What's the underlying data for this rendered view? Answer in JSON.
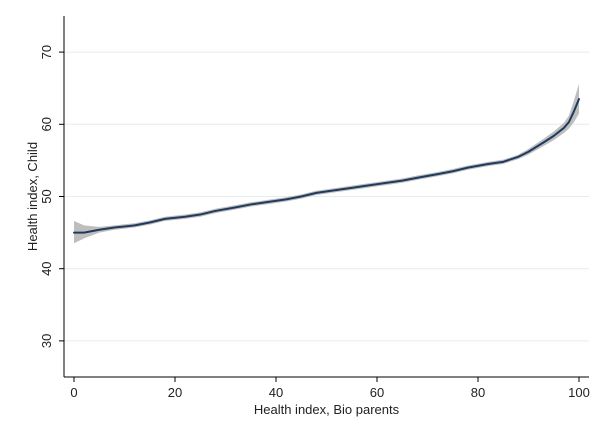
{
  "chart_data": {
    "type": "line",
    "title": "",
    "xlabel": "Health index, Bio parents",
    "ylabel": "Health index, Child",
    "xlim": [
      0,
      100
    ],
    "ylim": [
      25,
      75
    ],
    "xticks": [
      0,
      20,
      40,
      60,
      80,
      100
    ],
    "yticks": [
      30,
      40,
      50,
      60,
      70
    ],
    "grid": {
      "horizontal": true,
      "vertical": false
    },
    "legend": "none",
    "series": [
      {
        "x": [
          0,
          2,
          5,
          8,
          12,
          15,
          18,
          22,
          25,
          28,
          32,
          35,
          38,
          42,
          45,
          48,
          52,
          55,
          58,
          62,
          65,
          68,
          72,
          75,
          78,
          82,
          85,
          88,
          90,
          93,
          95,
          97,
          98,
          99,
          100
        ],
        "y": [
          45.0,
          45.0,
          45.4,
          45.7,
          46.0,
          46.4,
          46.9,
          47.2,
          47.5,
          48.0,
          48.5,
          48.9,
          49.2,
          49.6,
          50.0,
          50.5,
          50.9,
          51.2,
          51.5,
          51.9,
          52.2,
          52.6,
          53.1,
          53.5,
          54.0,
          54.5,
          54.8,
          55.5,
          56.2,
          57.5,
          58.4,
          59.5,
          60.3,
          61.8,
          63.5
        ],
        "ci_lower": [
          43.5,
          44.2,
          45.0,
          45.4,
          45.7,
          46.1,
          46.6,
          46.9,
          47.2,
          47.7,
          48.2,
          48.6,
          48.9,
          49.3,
          49.7,
          50.2,
          50.6,
          50.9,
          51.2,
          51.6,
          51.9,
          52.3,
          52.8,
          53.2,
          53.7,
          54.2,
          54.5,
          55.2,
          55.8,
          57.0,
          57.8,
          58.8,
          59.4,
          60.3,
          61.5
        ],
        "ci_upper": [
          46.6,
          46.0,
          45.8,
          46.0,
          46.3,
          46.7,
          47.2,
          47.5,
          47.8,
          48.3,
          48.8,
          49.2,
          49.5,
          49.9,
          50.3,
          50.8,
          51.2,
          51.5,
          51.8,
          52.2,
          52.5,
          52.9,
          53.4,
          53.8,
          54.3,
          54.8,
          55.1,
          55.8,
          56.6,
          58.0,
          59.0,
          60.2,
          61.2,
          63.3,
          65.6
        ],
        "line_color": "#1e3a5f",
        "band_color": "#b7b7b7"
      }
    ]
  }
}
